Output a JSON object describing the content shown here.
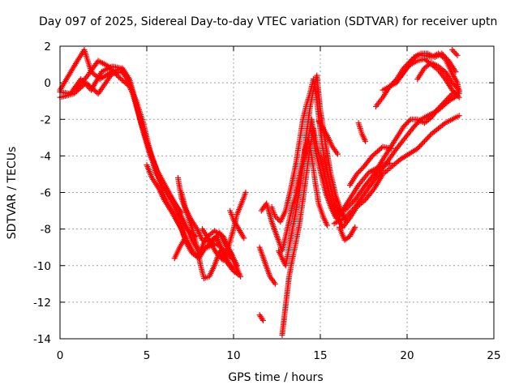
{
  "chart_data": {
    "type": "scatter",
    "title": "Day 097 of 2025, Sidereal Day-to-day VTEC variation (SDTVAR) for receiver uptn",
    "xlabel": "GPS time / hours",
    "ylabel": "SDTVAR / TECUs",
    "xlim": [
      0,
      25
    ],
    "ylim": [
      -14,
      2
    ],
    "xticks": [
      "0",
      "5",
      "10",
      "15",
      "20",
      "25"
    ],
    "yticks": [
      "2",
      "0",
      "-2",
      "-4",
      "-6",
      "-8",
      "-10",
      "-12",
      "-14"
    ],
    "grid": true,
    "marker": "+",
    "color": "#ff0000",
    "tracks": [
      [
        [
          0.0,
          -0.4
        ],
        [
          0.5,
          0.4
        ],
        [
          1.0,
          1.2
        ],
        [
          1.4,
          1.8
        ],
        [
          1.8,
          0.6
        ],
        [
          2.3,
          0.2
        ],
        [
          3.0,
          0.6
        ],
        [
          3.6,
          0.8
        ],
        [
          4.0,
          0.2
        ],
        [
          4.3,
          -0.8
        ],
        [
          4.6,
          -2.0
        ],
        [
          4.9,
          -3.0
        ],
        [
          5.2,
          -4.0
        ],
        [
          5.5,
          -4.6
        ],
        [
          5.8,
          -5.6
        ],
        [
          6.0,
          -6.2
        ],
        [
          6.3,
          -6.8
        ],
        [
          6.7,
          -7.5
        ],
        [
          7.0,
          -8.0
        ],
        [
          7.2,
          -8.5
        ]
      ],
      [
        [
          0.0,
          -0.5
        ],
        [
          0.6,
          -0.6
        ],
        [
          1.2,
          0.2
        ],
        [
          1.8,
          -0.4
        ],
        [
          2.4,
          0.6
        ],
        [
          3.0,
          0.9
        ],
        [
          3.5,
          0.8
        ],
        [
          4.0,
          0.1
        ],
        [
          4.4,
          -1.2
        ],
        [
          4.8,
          -2.6
        ],
        [
          5.1,
          -3.5
        ],
        [
          5.4,
          -4.3
        ],
        [
          5.7,
          -5.2
        ],
        [
          6.0,
          -5.6
        ],
        [
          6.4,
          -6.4
        ],
        [
          6.8,
          -7.2
        ],
        [
          7.3,
          -8.0
        ],
        [
          7.8,
          -8.4
        ]
      ],
      [
        [
          0.0,
          -0.8
        ],
        [
          0.8,
          -0.6
        ],
        [
          1.5,
          0.0
        ],
        [
          2.2,
          -0.6
        ],
        [
          3.0,
          0.5
        ],
        [
          3.6,
          0.6
        ],
        [
          4.0,
          0.0
        ],
        [
          4.5,
          -1.6
        ],
        [
          4.9,
          -3.0
        ],
        [
          5.2,
          -3.9
        ],
        [
          5.6,
          -4.8
        ],
        [
          6.0,
          -5.5
        ],
        [
          6.4,
          -6.2
        ],
        [
          6.8,
          -6.9
        ],
        [
          7.2,
          -7.7
        ],
        [
          7.6,
          -8.6
        ],
        [
          8.0,
          -9.2
        ],
        [
          8.5,
          -9.0
        ],
        [
          9.0,
          -8.8
        ],
        [
          9.5,
          -9.2
        ],
        [
          10.0,
          -9.7
        ],
        [
          10.4,
          -10.6
        ]
      ],
      [
        [
          1.0,
          -0.3
        ],
        [
          1.6,
          0.4
        ],
        [
          2.2,
          1.2
        ],
        [
          2.8,
          0.9
        ],
        [
          3.4,
          0.3
        ],
        [
          4.0,
          -0.2
        ],
        [
          4.4,
          -1.0
        ],
        [
          4.8,
          -2.2
        ],
        [
          5.2,
          -3.8
        ],
        [
          5.5,
          -4.9
        ],
        [
          5.8,
          -5.4
        ],
        [
          6.2,
          -6.0
        ],
        [
          6.6,
          -6.6
        ],
        [
          7.0,
          -7.1
        ]
      ],
      [
        [
          5.0,
          -4.5
        ],
        [
          5.3,
          -5.2
        ],
        [
          5.7,
          -5.8
        ],
        [
          6.0,
          -6.4
        ],
        [
          6.4,
          -7.0
        ],
        [
          6.9,
          -7.8
        ],
        [
          7.3,
          -8.6
        ],
        [
          7.7,
          -9.3
        ],
        [
          8.0,
          -9.4
        ],
        [
          8.4,
          -8.5
        ],
        [
          8.9,
          -8.1
        ],
        [
          9.4,
          -8.4
        ],
        [
          9.8,
          -9.2
        ],
        [
          10.2,
          -10.0
        ]
      ],
      [
        [
          6.8,
          -5.2
        ],
        [
          7.0,
          -6.3
        ],
        [
          7.3,
          -7.1
        ],
        [
          7.6,
          -7.9
        ],
        [
          7.9,
          -9.0
        ],
        [
          8.1,
          -10.0
        ],
        [
          8.3,
          -10.7
        ],
        [
          8.6,
          -10.6
        ],
        [
          8.9,
          -10.0
        ],
        [
          9.2,
          -9.2
        ],
        [
          9.6,
          -9.8
        ],
        [
          10.0,
          -10.3
        ],
        [
          10.3,
          -10.5
        ]
      ],
      [
        [
          7.0,
          -6.0
        ],
        [
          7.2,
          -6.8
        ],
        [
          7.5,
          -7.4
        ],
        [
          7.9,
          -8.0
        ],
        [
          8.2,
          -8.6
        ],
        [
          8.6,
          -8.7
        ],
        [
          9.0,
          -8.4
        ],
        [
          9.3,
          -9.0
        ],
        [
          9.7,
          -9.8
        ],
        [
          10.0,
          -10.2
        ]
      ],
      [
        [
          7.0,
          -8.0
        ],
        [
          7.3,
          -8.8
        ],
        [
          7.6,
          -9.3
        ],
        [
          8.0,
          -9.6
        ],
        [
          8.4,
          -9.0
        ],
        [
          8.8,
          -8.7
        ],
        [
          9.2,
          -8.2
        ],
        [
          9.5,
          -8.8
        ],
        [
          9.9,
          -9.4
        ]
      ],
      [
        [
          6.6,
          -9.6
        ],
        [
          6.9,
          -9.0
        ],
        [
          7.2,
          -8.5
        ]
      ],
      [
        [
          8.2,
          -8.0
        ],
        [
          8.6,
          -8.6
        ],
        [
          9.0,
          -9.3
        ],
        [
          9.4,
          -9.7
        ],
        [
          9.7,
          -9.0
        ],
        [
          10.0,
          -8.0
        ],
        [
          10.2,
          -7.2
        ],
        [
          10.5,
          -6.5
        ],
        [
          10.7,
          -6.0
        ]
      ],
      [
        [
          9.8,
          -7.0
        ],
        [
          10.0,
          -7.5
        ],
        [
          10.3,
          -8.0
        ],
        [
          10.6,
          -8.5
        ]
      ],
      [
        [
          11.5,
          -12.7
        ],
        [
          11.7,
          -13.0
        ]
      ],
      [
        [
          11.6,
          -7.0
        ],
        [
          11.9,
          -6.6
        ],
        [
          12.2,
          -7.6
        ],
        [
          12.5,
          -8.4
        ],
        [
          12.8,
          -9.2
        ],
        [
          13.1,
          -8.0
        ],
        [
          13.4,
          -6.7
        ],
        [
          13.7,
          -5.8
        ],
        [
          14.0,
          -4.5
        ],
        [
          14.3,
          -3.1
        ],
        [
          14.5,
          -2.0
        ],
        [
          14.7,
          -3.6
        ],
        [
          15.0,
          -4.8
        ],
        [
          15.3,
          -6.0
        ],
        [
          15.6,
          -6.8
        ],
        [
          15.9,
          -7.4
        ]
      ],
      [
        [
          11.5,
          -9.0
        ],
        [
          11.8,
          -9.8
        ],
        [
          12.1,
          -10.6
        ],
        [
          12.4,
          -11.0
        ]
      ],
      [
        [
          12.2,
          -6.8
        ],
        [
          12.4,
          -7.3
        ],
        [
          12.7,
          -7.6
        ],
        [
          13.0,
          -7.0
        ],
        [
          13.3,
          -5.8
        ],
        [
          13.6,
          -4.4
        ],
        [
          13.8,
          -3.2
        ],
        [
          14.0,
          -2.0
        ],
        [
          14.2,
          -1.2
        ],
        [
          14.4,
          -0.6
        ],
        [
          14.6,
          0.2
        ],
        [
          14.8,
          -1.0
        ],
        [
          15.0,
          -2.6
        ],
        [
          15.2,
          -4.0
        ],
        [
          15.5,
          -5.3
        ],
        [
          15.8,
          -6.6
        ],
        [
          16.1,
          -7.3
        ],
        [
          16.4,
          -6.8
        ],
        [
          16.8,
          -6.2
        ],
        [
          17.2,
          -5.6
        ],
        [
          17.8,
          -4.9
        ],
        [
          18.4,
          -4.6
        ],
        [
          19.0,
          -4.4
        ]
      ],
      [
        [
          12.6,
          -9.2
        ],
        [
          12.8,
          -9.6
        ],
        [
          13.0,
          -10.0
        ],
        [
          13.2,
          -9.0
        ],
        [
          13.5,
          -7.5
        ],
        [
          13.8,
          -5.9
        ],
        [
          14.0,
          -4.4
        ],
        [
          14.2,
          -2.8
        ],
        [
          14.4,
          -1.4
        ],
        [
          14.6,
          -0.4
        ],
        [
          14.8,
          0.4
        ],
        [
          15.0,
          -1.5
        ],
        [
          15.3,
          -3.3
        ],
        [
          15.6,
          -5.0
        ],
        [
          15.9,
          -6.2
        ],
        [
          16.2,
          -7.0
        ],
        [
          16.5,
          -7.6
        ]
      ],
      [
        [
          12.8,
          -13.8
        ],
        [
          13.0,
          -12.2
        ],
        [
          13.2,
          -10.6
        ],
        [
          13.4,
          -9.6
        ],
        [
          13.6,
          -8.7
        ],
        [
          13.8,
          -7.7
        ],
        [
          14.0,
          -6.4
        ],
        [
          14.2,
          -5.0
        ],
        [
          14.4,
          -3.6
        ],
        [
          14.6,
          -2.5
        ],
        [
          14.8,
          -3.5
        ],
        [
          15.1,
          -4.5
        ],
        [
          15.4,
          -5.6
        ],
        [
          15.7,
          -6.7
        ],
        [
          16.0,
          -7.4
        ],
        [
          16.3,
          -7.9
        ],
        [
          16.7,
          -7.4
        ],
        [
          17.1,
          -6.8
        ],
        [
          17.6,
          -6.4
        ],
        [
          18.1,
          -5.8
        ],
        [
          18.6,
          -5.0
        ],
        [
          19.1,
          -4.6
        ],
        [
          19.6,
          -4.2
        ],
        [
          20.1,
          -3.9
        ],
        [
          20.6,
          -3.6
        ],
        [
          21.0,
          -3.2
        ],
        [
          21.4,
          -2.8
        ],
        [
          21.8,
          -2.5
        ],
        [
          22.2,
          -2.2
        ],
        [
          22.6,
          -2.0
        ],
        [
          23.0,
          -1.8
        ]
      ],
      [
        [
          13.6,
          -6.0
        ],
        [
          13.9,
          -4.6
        ],
        [
          14.1,
          -3.8
        ],
        [
          14.3,
          -3.0
        ],
        [
          14.5,
          -4.0
        ],
        [
          14.7,
          -5.4
        ],
        [
          14.9,
          -6.6
        ],
        [
          15.2,
          -7.4
        ],
        [
          15.4,
          -7.8
        ]
      ],
      [
        [
          14.9,
          -2.1
        ],
        [
          15.1,
          -2.4
        ],
        [
          15.4,
          -2.9
        ],
        [
          15.7,
          -3.5
        ],
        [
          16.0,
          -3.9
        ]
      ],
      [
        [
          16.1,
          -7.9
        ],
        [
          16.4,
          -8.6
        ],
        [
          16.7,
          -8.4
        ],
        [
          17.0,
          -7.9
        ]
      ],
      [
        [
          16.7,
          -5.6
        ],
        [
          17.1,
          -5.0
        ],
        [
          17.5,
          -4.6
        ],
        [
          18.0,
          -4.0
        ],
        [
          18.6,
          -3.5
        ],
        [
          19.1,
          -3.6
        ]
      ],
      [
        [
          17.2,
          -2.2
        ],
        [
          17.4,
          -2.8
        ],
        [
          17.6,
          -3.2
        ]
      ],
      [
        [
          15.8,
          -7.7
        ],
        [
          16.4,
          -7.4
        ],
        [
          17.0,
          -6.8
        ],
        [
          17.6,
          -6.0
        ],
        [
          18.2,
          -5.2
        ],
        [
          18.8,
          -4.4
        ],
        [
          19.4,
          -3.6
        ],
        [
          19.9,
          -3.0
        ],
        [
          20.4,
          -2.4
        ],
        [
          20.8,
          -2.0
        ],
        [
          21.2,
          -1.8
        ],
        [
          21.8,
          -1.5
        ],
        [
          22.4,
          -1.0
        ],
        [
          22.9,
          -0.7
        ]
      ],
      [
        [
          16.4,
          -7.0
        ],
        [
          17.0,
          -6.4
        ],
        [
          17.6,
          -5.6
        ],
        [
          18.1,
          -5.0
        ],
        [
          18.6,
          -4.2
        ],
        [
          19.0,
          -3.6
        ],
        [
          19.4,
          -3.0
        ],
        [
          19.8,
          -2.4
        ],
        [
          20.2,
          -2.0
        ],
        [
          20.6,
          -2.0
        ],
        [
          21.0,
          -2.2
        ],
        [
          21.4,
          -1.9
        ],
        [
          21.8,
          -1.4
        ],
        [
          22.2,
          -1.0
        ],
        [
          22.6,
          -0.6
        ],
        [
          23.0,
          -0.5
        ]
      ],
      [
        [
          18.2,
          -1.3
        ],
        [
          18.6,
          -0.8
        ],
        [
          19.0,
          -0.2
        ],
        [
          19.4,
          0.2
        ],
        [
          19.8,
          0.8
        ],
        [
          20.2,
          1.2
        ],
        [
          20.6,
          1.5
        ],
        [
          21.0,
          1.5
        ],
        [
          21.4,
          1.4
        ],
        [
          21.8,
          1.6
        ],
        [
          22.2,
          1.3
        ],
        [
          22.6,
          0.5
        ],
        [
          22.9,
          0.0
        ],
        [
          23.0,
          -0.6
        ]
      ],
      [
        [
          18.6,
          -0.4
        ],
        [
          19.0,
          -0.2
        ],
        [
          19.4,
          0.0
        ],
        [
          19.8,
          0.6
        ],
        [
          20.2,
          1.0
        ],
        [
          20.6,
          1.2
        ],
        [
          21.0,
          1.3
        ],
        [
          21.4,
          1.0
        ],
        [
          21.8,
          0.7
        ],
        [
          22.2,
          0.2
        ],
        [
          22.6,
          -0.4
        ],
        [
          23.0,
          -0.8
        ]
      ],
      [
        [
          19.6,
          0.3
        ],
        [
          20.0,
          0.8
        ],
        [
          20.4,
          1.4
        ],
        [
          20.8,
          1.6
        ],
        [
          21.2,
          1.6
        ],
        [
          21.6,
          1.4
        ],
        [
          22.0,
          1.6
        ],
        [
          22.4,
          1.2
        ],
        [
          22.8,
          0.6
        ]
      ],
      [
        [
          20.6,
          0.2
        ],
        [
          21.0,
          0.8
        ],
        [
          21.4,
          1.1
        ],
        [
          21.8,
          0.9
        ],
        [
          22.2,
          0.6
        ],
        [
          22.6,
          0.0
        ],
        [
          23.0,
          -0.4
        ]
      ],
      [
        [
          22.6,
          1.8
        ],
        [
          22.9,
          1.5
        ]
      ]
    ]
  }
}
